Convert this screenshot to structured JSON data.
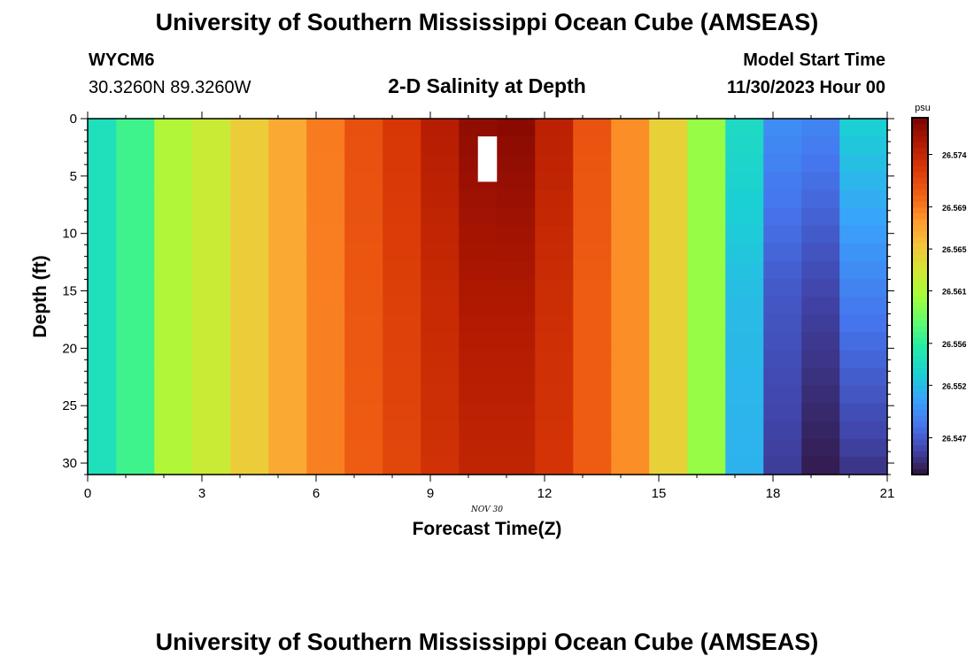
{
  "header": {
    "title": "University of Southern Mississippi Ocean Cube (AMSEAS)",
    "station": "WYCM6",
    "coords": "30.3260N  89.3260W",
    "subtitle": "2-D Salinity at Depth",
    "model_label": "Model Start Time",
    "model_time": "11/30/2023 Hour 00"
  },
  "footer": {
    "title": "University of Southern Mississippi Ocean Cube (AMSEAS)"
  },
  "chart_data": {
    "type": "heatmap",
    "title": "2-D Salinity at Depth",
    "xlabel": "Forecast Time(Z)",
    "ylabel": "Depth (ft)",
    "date_label": "NOV 30",
    "xlim": [
      0,
      21
    ],
    "ylim": [
      0,
      31
    ],
    "xticks": [
      0,
      3,
      6,
      9,
      12,
      15,
      18,
      21
    ],
    "yticks": [
      0,
      5,
      10,
      15,
      20,
      25,
      30
    ],
    "colorbar": {
      "unit": "psu",
      "min": 26.5435,
      "max": 26.5775,
      "ticks": [
        26.547,
        26.552,
        26.556,
        26.561,
        26.565,
        26.569,
        26.574
      ]
    },
    "time_steps": 21,
    "depth_levels": [
      0,
      1.55,
      3.1,
      4.65,
      6.2,
      7.75,
      9.3,
      10.85,
      12.4,
      13.95,
      15.5,
      17.05,
      18.6,
      20.15,
      21.7,
      23.25,
      24.8,
      26.35,
      27.9,
      29.45,
      31
    ],
    "salinity_profile": [
      26.5545,
      26.5568,
      26.5612,
      26.5625,
      26.5648,
      26.5668,
      26.5688,
      26.5708,
      26.5722,
      26.5738,
      26.5752,
      26.5752,
      26.5735,
      26.5705,
      26.5682,
      26.5645,
      26.56,
      26.552,
      26.5468,
      26.5458,
      26.5488
    ],
    "surface_values": [
      26.5545,
      26.5568,
      26.5612,
      26.5625,
      26.5648,
      26.5668,
      26.569,
      26.5712,
      26.5728,
      26.5748,
      26.5765,
      26.5768,
      26.5745,
      26.571,
      26.5682,
      26.5645,
      26.56,
      26.554,
      26.5495,
      26.549,
      26.553
    ],
    "bottom_values": [
      26.5545,
      26.5568,
      26.5612,
      26.5625,
      26.5648,
      26.5668,
      26.5688,
      26.5705,
      26.5718,
      26.5732,
      26.5742,
      26.5742,
      26.573,
      26.5705,
      26.5682,
      26.5645,
      26.56,
      26.5515,
      26.5455,
      26.544,
      26.5452
    ],
    "missing_cell": {
      "time_index": 10,
      "depth_range": [
        1.55,
        5.5
      ]
    }
  }
}
